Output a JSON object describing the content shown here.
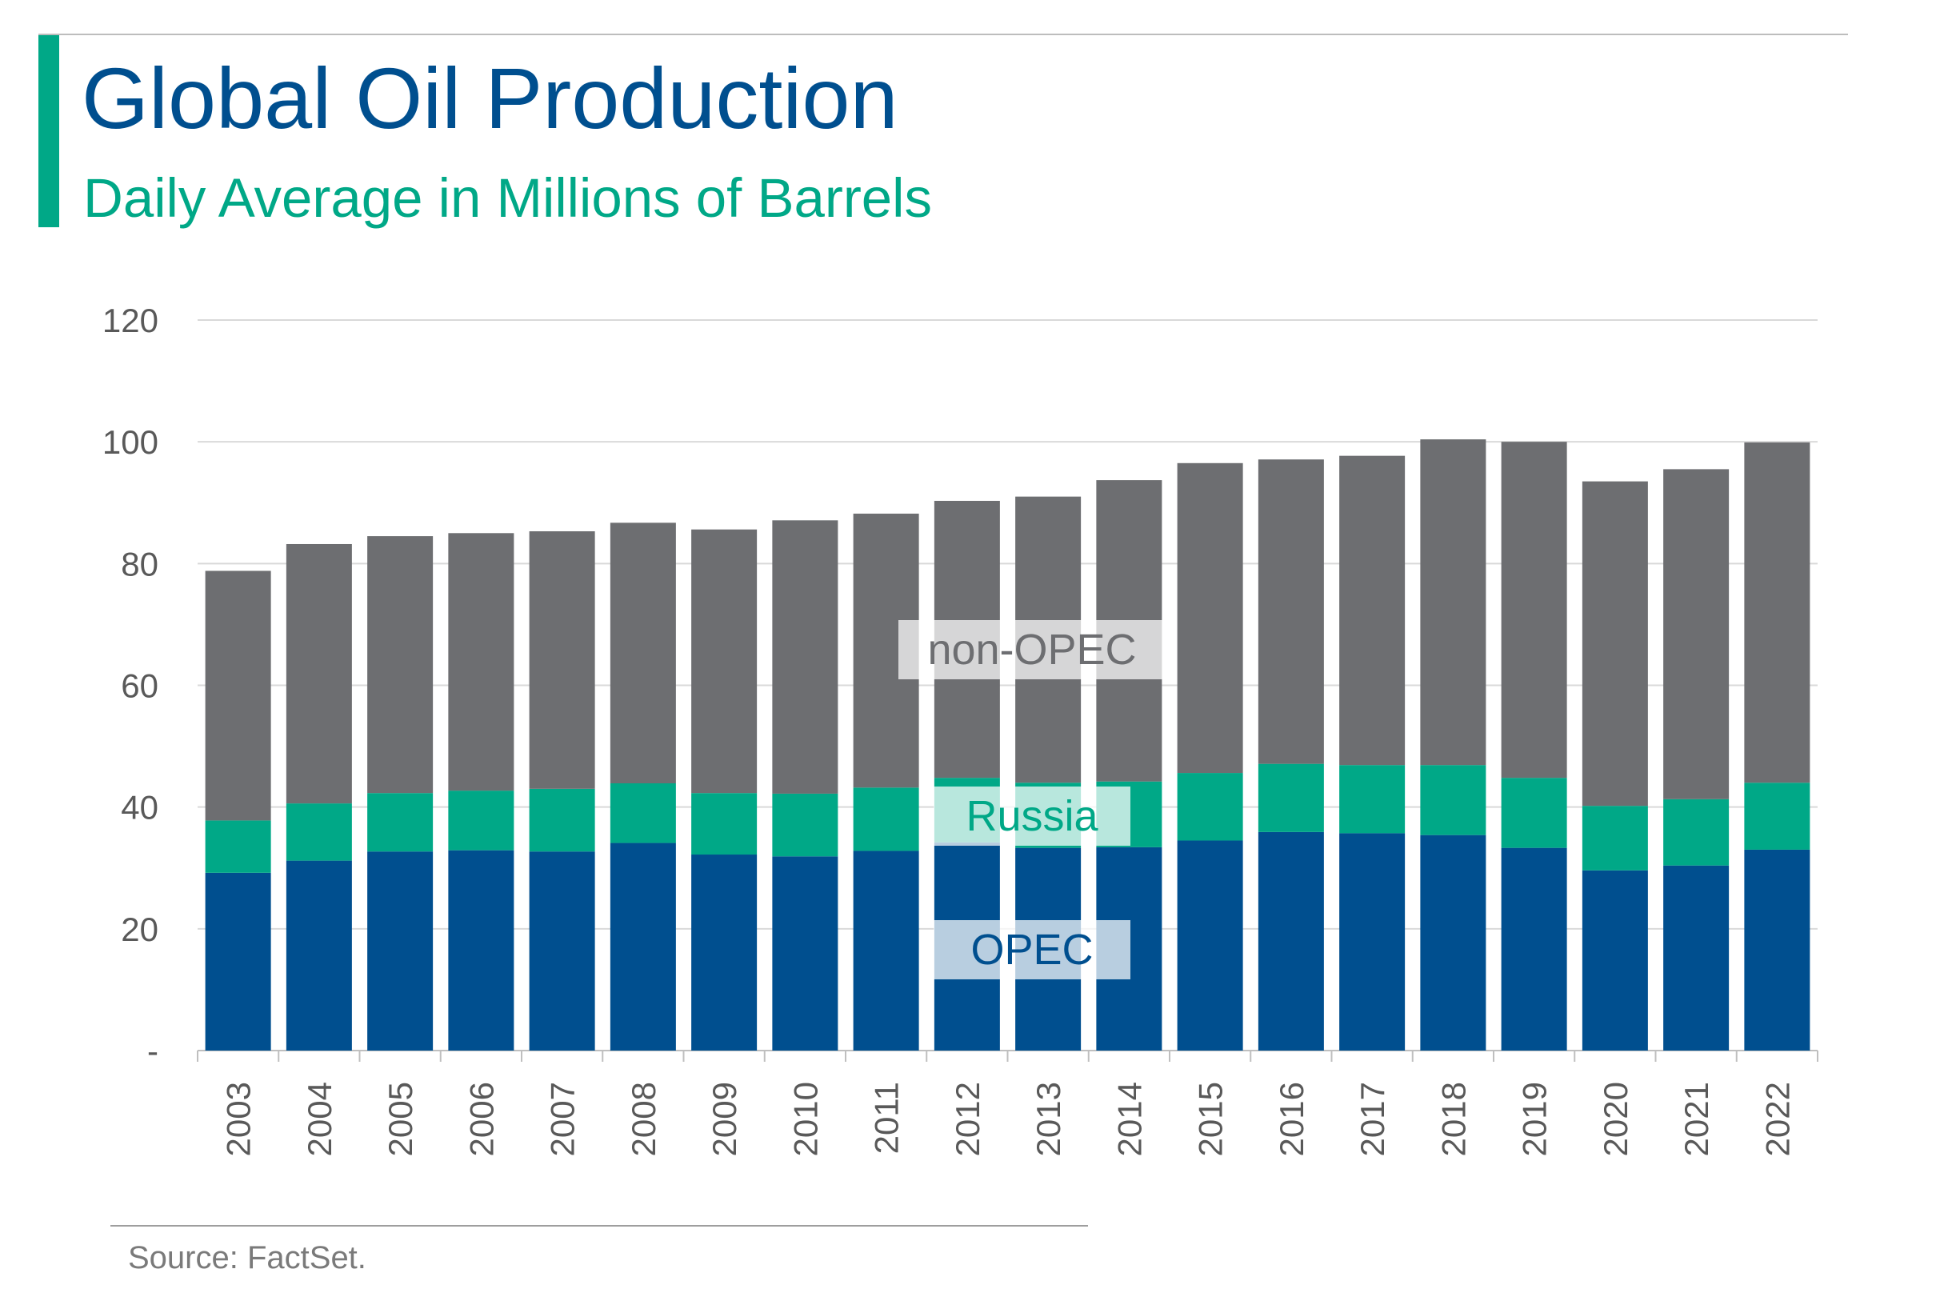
{
  "header": {
    "title": "Global Oil Production",
    "subtitle": "Daily Average in Millions of Barrels"
  },
  "footer": {
    "source": "Source: FactSet."
  },
  "colors": {
    "opec": "#004f8f",
    "russia": "#00a887",
    "non_opec": "#6d6e71",
    "grid": "#d9d9d9",
    "axis_text": "#595959"
  },
  "chart_data": {
    "type": "bar",
    "stacked": true,
    "categories": [
      "2003",
      "2004",
      "2005",
      "2006",
      "2007",
      "2008",
      "2009",
      "2010",
      "2011",
      "2012",
      "2013",
      "2014",
      "2015",
      "2016",
      "2017",
      "2018",
      "2019",
      "2020",
      "2021",
      "2022"
    ],
    "series": [
      {
        "name": "OPEC",
        "values": [
          29.2,
          31.2,
          32.7,
          32.9,
          32.7,
          34.1,
          32.2,
          31.9,
          32.8,
          34.2,
          33.3,
          33.4,
          34.5,
          35.9,
          35.7,
          35.4,
          33.3,
          29.6,
          30.4,
          33.0
        ]
      },
      {
        "name": "Russia",
        "values": [
          8.6,
          9.4,
          9.6,
          9.8,
          10.3,
          9.8,
          10.1,
          10.3,
          10.4,
          10.6,
          10.7,
          10.8,
          11.1,
          11.2,
          11.2,
          11.5,
          11.5,
          10.6,
          10.9,
          11.0
        ]
      },
      {
        "name": "non-OPEC",
        "values": [
          41.0,
          42.6,
          42.2,
          42.3,
          42.3,
          42.8,
          43.3,
          44.9,
          45.0,
          45.5,
          47.0,
          49.5,
          50.9,
          50.0,
          50.8,
          53.5,
          55.2,
          53.3,
          54.2,
          55.9
        ]
      }
    ],
    "ylim": [
      0,
      120
    ],
    "yticks": [
      0,
      20,
      40,
      60,
      80,
      100,
      120
    ],
    "ytick_labels": [
      "-",
      "20",
      "40",
      "60",
      "80",
      "100",
      "120"
    ],
    "grid": true,
    "series_labels": [
      "OPEC",
      "Russia",
      "non-OPEC"
    ]
  }
}
